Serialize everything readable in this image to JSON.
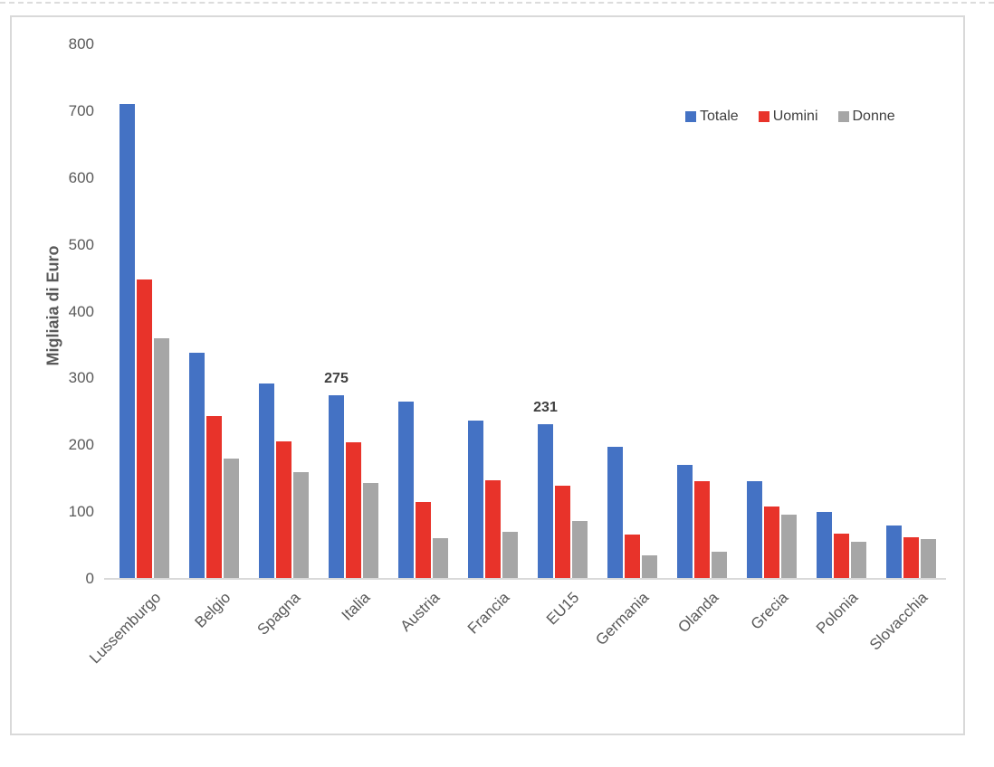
{
  "chart_data": {
    "type": "bar",
    "title": "",
    "xlabel": "",
    "ylabel": "Migliaia di Euro",
    "ylim": [
      0,
      800
    ],
    "yticks": [
      800,
      700,
      600,
      500,
      400,
      300,
      200,
      100,
      0
    ],
    "grid": false,
    "legend_position": "top-right-inside",
    "categories": [
      "Lussemburgo",
      "Belgio",
      "Spagna",
      "Italia",
      "Austria",
      "Francia",
      "EU15",
      "Germania",
      "Olanda",
      "Grecia",
      "Polonia",
      "Slovacchia"
    ],
    "series": [
      {
        "name": "Totale",
        "color": "#4472C4",
        "values": [
          711,
          339,
          292,
          275,
          265,
          237,
          231,
          198,
          170,
          146,
          100,
          80
        ]
      },
      {
        "name": "Uomini",
        "color": "#E8332A",
        "values": [
          448,
          243,
          206,
          205,
          115,
          148,
          140,
          66,
          146,
          108,
          68,
          62
        ]
      },
      {
        "name": "Donne",
        "color": "#A6A6A6",
        "values": [
          360,
          180,
          160,
          143,
          61,
          71,
          87,
          35,
          41,
          96,
          55,
          59
        ]
      }
    ],
    "data_labels": [
      {
        "category": "Italia",
        "series": "Totale",
        "text": "275"
      },
      {
        "category": "EU15",
        "series": "Totale",
        "text": "231"
      }
    ]
  },
  "colors": {
    "axis_line": "#D9D9D9",
    "frame_border": "#D9D9D9",
    "tick_text": "#595959",
    "axis_title_text": "#595959",
    "data_label_text": "#3F3F3F",
    "legend_text": "#404040",
    "background": "#FFFFFF"
  }
}
